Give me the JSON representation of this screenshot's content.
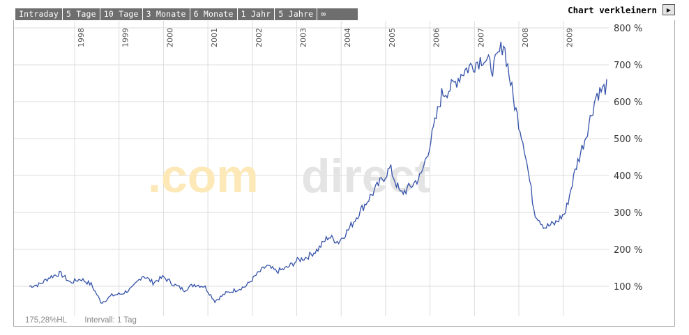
{
  "tabs": [
    {
      "label": "Intraday"
    },
    {
      "label": "5 Tage"
    },
    {
      "label": "10 Tage"
    },
    {
      "label": "3 Monate"
    },
    {
      "label": "6 Monate"
    },
    {
      "label": "1 Jahr"
    },
    {
      "label": "5 Jahre"
    },
    {
      "label": "∞"
    }
  ],
  "shrink_label": "Chart verkleinern",
  "watermark": {
    "part1": ".com",
    "part2": "direct"
  },
  "footer": {
    "value": "175,28%HL",
    "interval": "Intervall: 1 Tag"
  },
  "colors": {
    "line": "#3451a8",
    "grid": "#dcdcdc",
    "tab_bg": "#6e6e6e",
    "watermark_orange": "#fde9b8",
    "watermark_grey": "#e4e4e4"
  },
  "chart_data": {
    "type": "line",
    "title": "",
    "xlabel": "",
    "ylabel": "",
    "year_labels": [
      "1998",
      "1999",
      "2000",
      "2001",
      "2002",
      "2003",
      "2004",
      "2005",
      "2006",
      "2007",
      "2008",
      "2009"
    ],
    "ylim": [
      0,
      800
    ],
    "y_ticks": [
      100,
      200,
      300,
      400,
      500,
      600,
      700,
      800
    ],
    "y_tick_suffix": " %",
    "grid": true,
    "series": [
      {
        "values_by_year_start": [
          100,
          105,
          125,
          135,
          110,
          120,
          105,
          55,
          75,
          80,
          95,
          130,
          110,
          125,
          105,
          90,
          105,
          100,
          60,
          80,
          90,
          100,
          130,
          155,
          140,
          150,
          170,
          180,
          200,
          235,
          220,
          255,
          300,
          340,
          380,
          420,
          350,
          370,
          400,
          500,
          620,
          640,
          680,
          700,
          720,
          690,
          760,
          600,
          480,
          300,
          260,
          270,
          300,
          420,
          510,
          620,
          640
        ]
      }
    ]
  }
}
